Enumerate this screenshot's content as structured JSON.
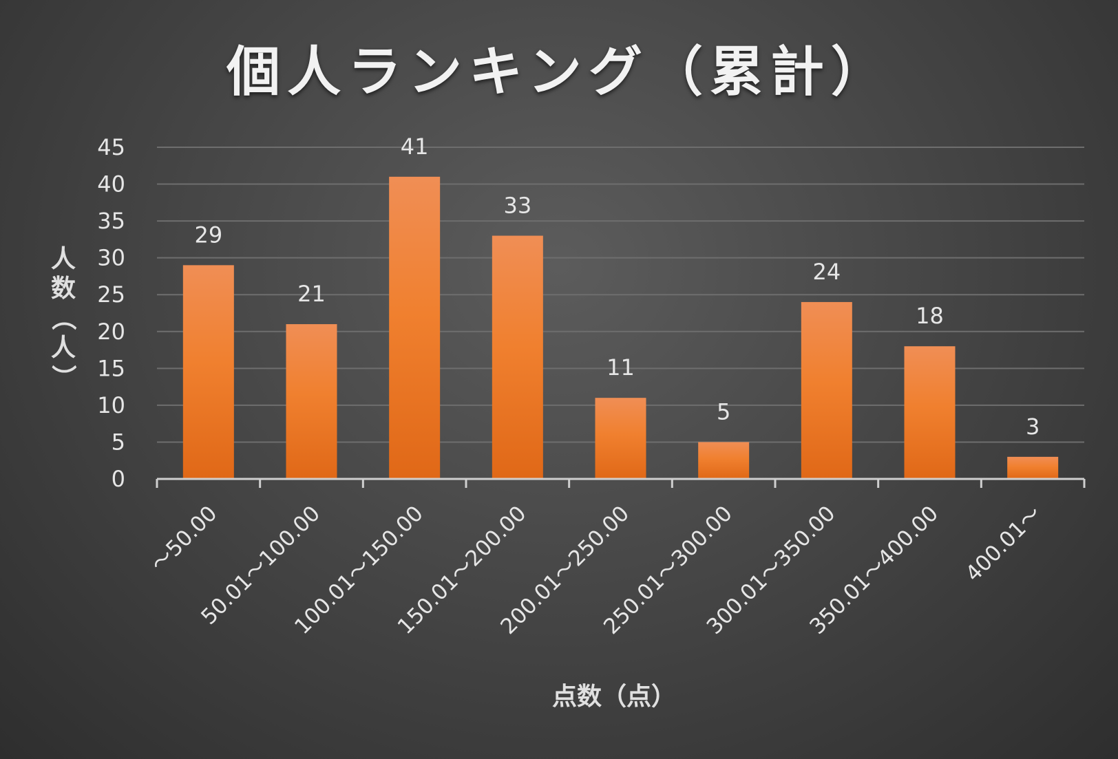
{
  "chart_data": {
    "type": "bar",
    "title": "個人ランキング（累計）",
    "xlabel": "点数（点）",
    "ylabel": "人数（人）",
    "categories": [
      "～50.00",
      "50.01～100.00",
      "100.01～150.00",
      "150.01～200.00",
      "200.01～250.00",
      "250.01～300.00",
      "300.01～350.00",
      "350.01～400.00",
      "400.01～"
    ],
    "values": [
      29,
      21,
      41,
      33,
      11,
      5,
      24,
      18,
      3
    ],
    "ylim": [
      0,
      45
    ],
    "yticks": [
      0,
      5,
      10,
      15,
      20,
      25,
      30,
      35,
      40,
      45
    ],
    "grid": true,
    "data_labels": true,
    "colors": {
      "bar_top": "#f08e55",
      "bar_mid": "#f0802f",
      "bar_bottom": "#e06817",
      "grid": "#6e6e6e",
      "axis": "#cfcfcf",
      "text": "#e6e6e6"
    }
  }
}
